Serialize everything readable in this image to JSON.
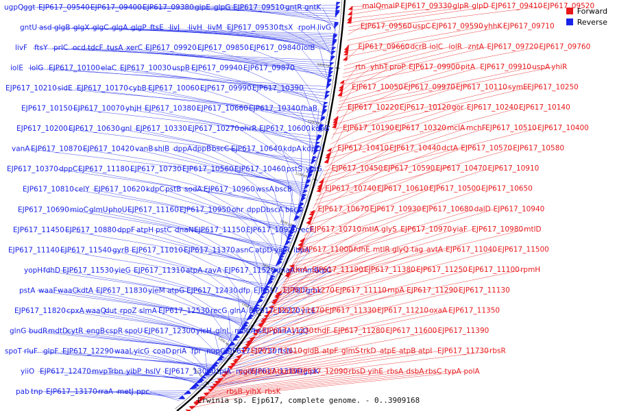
{
  "caption": "Erwinia sp. Ejp617, complete genome. - 0..3909168",
  "legend": [
    {
      "label": "Forward",
      "color": "#e8171a"
    },
    {
      "label": "Reverse",
      "color": "#1a24e8"
    }
  ],
  "colors": {
    "forward": "#e8171a",
    "reverse": "#1a24e8",
    "backbone": "#000000"
  },
  "scale_labels": [
    "1050 kbp",
    "1100 kbp",
    "1150 kbp",
    "1200 kbp",
    "1250 kbp",
    "1300 kbp",
    "1350 kbp",
    "1400 kbp"
  ],
  "reverse_labels": [
    "ugpQ",
    "ggt",
    "EJP617_09540",
    "EJP617_09400",
    "EJP617_09380",
    "glpE",
    "glpG",
    "EJP617_09510",
    "gntR",
    "gntK",
    "gntU",
    "asd",
    "glgB",
    "glgX",
    "glgC",
    "glgA",
    "glgP",
    "ftsE",
    "livJ",
    "livH",
    "livM",
    "EJP617_09530",
    "ftsX",
    "rpoH",
    "livG",
    "livF",
    "ftsY",
    "prlC",
    "ocd",
    "tdcF",
    "tusA",
    "xerC",
    "EJP617_09920",
    "EJP617_09850",
    "EJP617_09840",
    "iolB",
    "iolE",
    "iolG",
    "EJP617_10100",
    "elaC",
    "EJP617_10030",
    "uspB",
    "EJP617_09940",
    "EJP617_09870",
    "EJP617_10210",
    "sidE",
    "EJP617_10170",
    "cybB",
    "EJP617_10060",
    "EJP617_09990",
    "EJP617_10390",
    "EJP617_10150",
    "EJP617_10070",
    "yhjH",
    "EJP617_10380",
    "EJP617_10660",
    "EJP617_10340",
    "fhaB",
    "EJP617_10200",
    "EJP617_10630",
    "gnl",
    "EJP617_10330",
    "EJP617_10270",
    "ohrR",
    "EJP617_10600",
    "kdpB",
    "vanA",
    "EJP617_10870",
    "EJP617_10420",
    "vanB",
    "shlB",
    "dppA",
    "dppB",
    "bscC",
    "EJP617_10640",
    "kdpA",
    "kdpD",
    "EJP617_10370",
    "dppC",
    "EJP617_11180",
    "EJP617_10730",
    "EJP617_10560",
    "EJP617_10460",
    "pstS",
    "yiaG",
    "EJP617_10810",
    "celY",
    "EJP617_10620",
    "kdpC",
    "pstB",
    "sodA",
    "EJP617_10960",
    "wssA",
    "bscB",
    "EJP617_10690",
    "mioC",
    "glmU",
    "phoU",
    "EJP617_11160",
    "EJP617_10950",
    "ohr",
    "dppD",
    "bscA",
    "bscD",
    "EJP617_11450",
    "EJP617_10880",
    "dppF",
    "atpH",
    "pstC",
    "dnaN",
    "EJP617_11150",
    "EJP617_10920",
    "recF",
    "EJP617_11140",
    "EJP617_11540",
    "gyrB",
    "EJP617_11010",
    "EJP617_11370",
    "asnC",
    "atpD",
    "yidR",
    "ibpA",
    "yopH",
    "fdhD",
    "EJP617_11530",
    "yieG",
    "EJP617_11310",
    "atpA",
    "ravA",
    "EJP617_11520",
    "dnaA",
    "mnmG",
    "atpC",
    "pstA",
    "waaF",
    "waaC",
    "kdtA",
    "EJP617_11830",
    "yieM",
    "atpG",
    "EJP617_12430",
    "dfp",
    "EJP617_11780",
    "gmk",
    "EJP617_11820",
    "cpxA",
    "waaQ",
    "dut",
    "rpoZ",
    "slmA",
    "EJP617_12530",
    "recG",
    "glnA",
    "EJP617_12220",
    "yicE",
    "glnG",
    "budR",
    "mdtD",
    "cytR",
    "engB",
    "cspR",
    "spoU",
    "EJP617_12300",
    "yicH",
    "glnL",
    "mobA",
    "hslU",
    "phnA",
    "yigQ",
    "spoT",
    "rluF",
    "glpF",
    "EJP617_12290",
    "waaL",
    "yicG",
    "coaD",
    "priA",
    "fpr",
    "nupC",
    "EJP617_12730",
    "ftsN",
    "yiiO",
    "EJP617_12470",
    "mvpT",
    "rbn",
    "yibP",
    "hslV",
    "EJP617_13060",
    "tpiA",
    "mgo",
    "EJP617_13190",
    "glpK",
    "pab",
    "tnp",
    "EJP617_13170",
    "rraA",
    "metJ",
    "ppc"
  ],
  "forward_labels": [
    "malQ",
    "malP",
    "EJP617_09330",
    "glpR",
    "glpD",
    "EJP617_09410",
    "EJP617_09520",
    "EJP617_09560",
    "uspC",
    "EJP617_09590",
    "yhhK",
    "EJP617_09710",
    "EJP617_09660",
    "dcrB",
    "iolC",
    "iolR",
    "zntA",
    "EJP617_09720",
    "EJP617_09760",
    "rtn",
    "yhhT",
    "proP",
    "EJP617_09900",
    "pitA",
    "EJP617_09910",
    "uspA",
    "yhiR",
    "EJP617_10050",
    "EJP617_09970",
    "EJP617_10110",
    "symE",
    "EJP617_10250",
    "EJP617_10220",
    "EJP617_10120",
    "gor",
    "EJP617_10240",
    "EJP617_10140",
    "EJP617_10190",
    "EJP617_10320",
    "mclA",
    "mchF",
    "EJP617_10510",
    "EJP617_10400",
    "EJP617_10410",
    "EJP617_10440",
    "dctA",
    "EJP617_10570",
    "EJP617_10580",
    "EJP617_10450",
    "EJP617_10590",
    "EJP617_10470",
    "EJP617_10910",
    "EJP617_10740",
    "EJP617_10610",
    "EJP617_10500",
    "EJP617_10650",
    "EJP617_10670",
    "EJP617_10930",
    "EJP617_10680",
    "dalD",
    "EJP617_10940",
    "EJP617_10710",
    "mtlA",
    "glyS",
    "EJP617_10970",
    "yiaF",
    "EJP617_10980",
    "mtlD",
    "EJP617_11000",
    "fdhE",
    "mtlR",
    "glyQ",
    "tag",
    "avtA",
    "EJP617_11040",
    "EJP617_11500",
    "tkrA",
    "EJP617_11190",
    "EJP617_11380",
    "EJP617_11250",
    "EJP617_11100",
    "rpmH",
    "EJP617_11270",
    "EJP617_11110",
    "rnpA",
    "EJP617_11290",
    "EJP617_11130",
    "EJP617_11470",
    "EJP617_11330",
    "EJP617_11210",
    "oxaA",
    "EJP617_11350",
    "EJP617_11230",
    "thdF",
    "EJP617_11280",
    "EJP617_11600",
    "EJP617_11390",
    "EJP617_11610",
    "gidB",
    "atpF",
    "glmS",
    "trkD",
    "atpE",
    "atpB",
    "atpI",
    "EJP617_11730",
    "rbsR",
    "ygiW",
    "budA",
    "budB",
    "EJP617_12090",
    "rbsD",
    "yihE",
    "rbsA",
    "dsbA",
    "rbsC",
    "typA",
    "polA",
    "rbsB",
    "yihX",
    "rbsK"
  ]
}
